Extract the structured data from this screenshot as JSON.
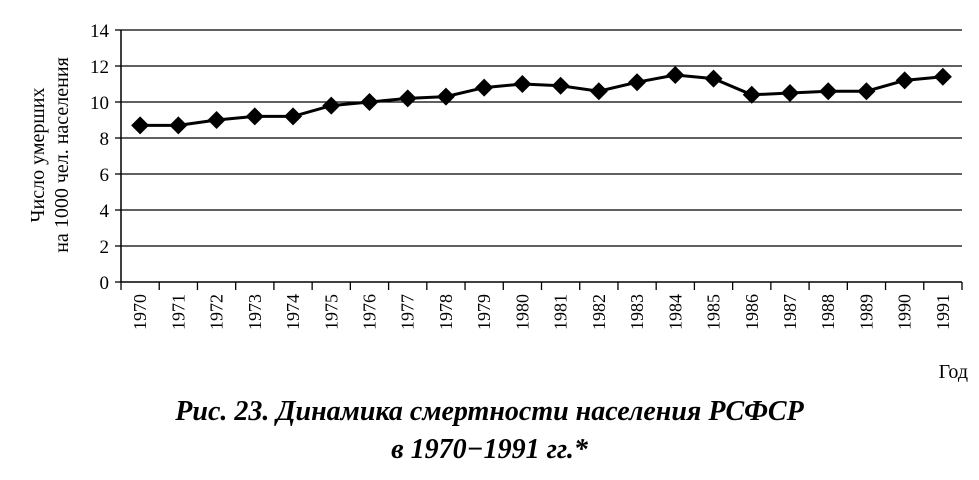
{
  "chart_data": {
    "type": "line",
    "ylabel_line1": "Число умерших",
    "ylabel_line2": "на 1000 чел. населения",
    "xlabel": "Год",
    "ylim": [
      0,
      14
    ],
    "yticks": [
      0,
      2,
      4,
      6,
      8,
      10,
      12,
      14
    ],
    "grid": true,
    "x": [
      "1970",
      "1971",
      "1972",
      "1973",
      "1974",
      "1975",
      "1976",
      "1977",
      "1978",
      "1979",
      "1980",
      "1981",
      "1982",
      "1983",
      "1984",
      "1985",
      "1986",
      "1987",
      "1988",
      "1989",
      "1990",
      "1991"
    ],
    "values": [
      8.7,
      8.7,
      9.0,
      9.2,
      9.2,
      9.8,
      10.0,
      10.2,
      10.3,
      10.8,
      11.0,
      10.9,
      10.6,
      11.1,
      11.5,
      11.3,
      10.4,
      10.5,
      10.6,
      10.6,
      11.2,
      11.4
    ]
  },
  "caption": {
    "line1": "Рис. 23. Динамика смертности населения РСФСР",
    "line2": "в 1970−1991 гг.*"
  }
}
